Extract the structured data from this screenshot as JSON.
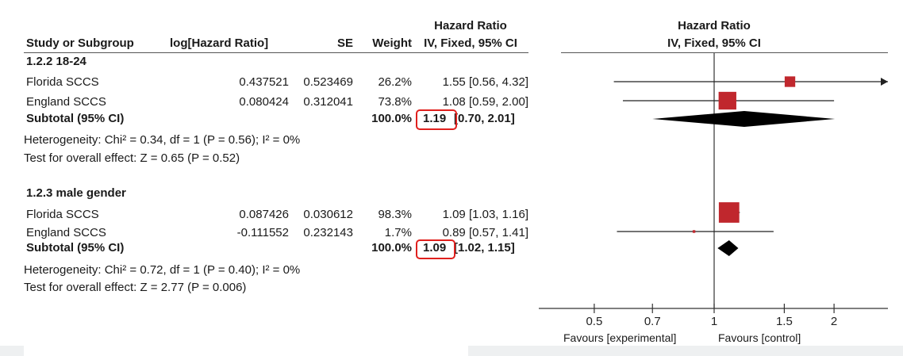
{
  "header": {
    "hr_title": "Hazard Ratio",
    "study_col": "Study or Subgroup",
    "loghr_col": "log[Hazard Ratio]",
    "se_col": "SE",
    "weight_col": "Weight",
    "ci_col": "IV, Fixed, 95% CI",
    "plot_title": "Hazard Ratio",
    "plot_subtitle": "IV, Fixed, 95% CI"
  },
  "subgroups": [
    {
      "title": "1.2.2 18-24",
      "studies": [
        {
          "name": "Florida SCCS",
          "loghr": "0.437521",
          "se": "0.523469",
          "weight": "26.2%",
          "ci_text": "1.55 [0.56, 4.32]"
        },
        {
          "name": "England SCCS",
          "loghr": "0.080424",
          "se": "0.312041",
          "weight": "73.8%",
          "ci_text": "1.08 [0.59, 2.00]"
        }
      ],
      "subtotal": {
        "label": "Subtotal (95% CI)",
        "weight": "100.0%",
        "est": "1.19",
        "ci": "[0.70, 2.01]"
      },
      "heterogeneity": "Heterogeneity: Chi² = 0.34, df = 1 (P = 0.56); I² = 0%",
      "overall": "Test for overall effect: Z = 0.65 (P = 0.52)"
    },
    {
      "title": "1.2.3 male gender",
      "studies": [
        {
          "name": "Florida SCCS",
          "loghr": "0.087426",
          "se": "0.030612",
          "weight": "98.3%",
          "ci_text": "1.09 [1.03, 1.16]"
        },
        {
          "name": "England SCCS",
          "loghr": "-0.111552",
          "se": "0.232143",
          "weight": "1.7%",
          "ci_text": "0.89 [0.57, 1.41]"
        }
      ],
      "subtotal": {
        "label": "Subtotal (95% CI)",
        "weight": "100.0%",
        "est": "1.09",
        "ci": "[1.02, 1.15]"
      },
      "heterogeneity": "Heterogeneity: Chi² = 0.72, df = 1 (P = 0.40); I² = 0%",
      "overall": "Test for overall effect: Z = 2.77 (P = 0.006)"
    }
  ],
  "axis": {
    "favours_left": "Favours [experimental]",
    "favours_right": "Favours [control]"
  },
  "chart_data": {
    "type": "forest",
    "scale": "log",
    "xlim": [
      0.4,
      2.6
    ],
    "reference_line": 1,
    "ticks": [
      0.5,
      0.7,
      1,
      1.5,
      2
    ],
    "tick_labels": [
      "0.5",
      "0.7",
      "1",
      "1.5",
      "2"
    ],
    "colors": {
      "study_marker": "#c0272d",
      "summary_diamond": "#000000",
      "highlight_box": "#e0201d"
    },
    "subgroups": [
      {
        "name": "1.2.2 18-24",
        "studies": [
          {
            "name": "Florida SCCS",
            "hr": 1.55,
            "lo": 0.56,
            "hi": 4.32,
            "weight": 26.2,
            "arrow_right": true
          },
          {
            "name": "England SCCS",
            "hr": 1.08,
            "lo": 0.59,
            "hi": 2.0,
            "weight": 73.8
          }
        ],
        "subtotal": {
          "hr": 1.19,
          "lo": 0.7,
          "hi": 2.01
        }
      },
      {
        "name": "1.2.3 male gender",
        "studies": [
          {
            "name": "Florida SCCS",
            "hr": 1.09,
            "lo": 1.03,
            "hi": 1.16,
            "weight": 98.3
          },
          {
            "name": "England SCCS",
            "hr": 0.89,
            "lo": 0.57,
            "hi": 1.41,
            "weight": 1.7
          }
        ],
        "subtotal": {
          "hr": 1.09,
          "lo": 1.02,
          "hi": 1.15
        }
      }
    ]
  }
}
